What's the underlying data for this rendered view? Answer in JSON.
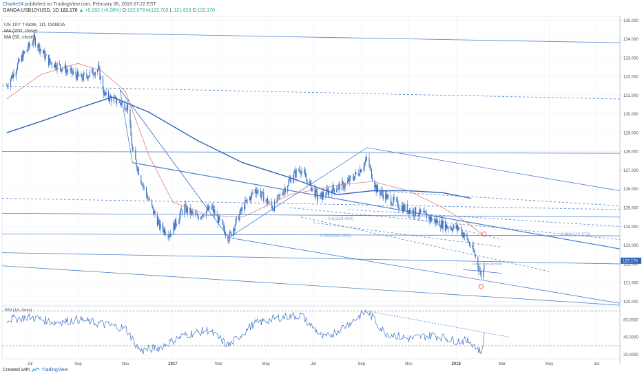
{
  "header": {
    "author": "Charlie24",
    "published": "published on TradingView.com, February 06, 2018 07:22 EST",
    "symbol": "OANDA:USB10YUSD, 1D",
    "last": "122.170",
    "change": "▲ +0.092 (+0.08%)",
    "o_label": "O:",
    "o_value": "122.078",
    "h_label": "H:",
    "h_value": "122.703",
    "l_label": "L:",
    "l_value": "121.623",
    "c_label": "C:",
    "c_value": "122.170"
  },
  "legend": {
    "title": "US 10Y T-Note, 1D, OANDA",
    "ma200": "MA (200, close)",
    "ma50": "MA (50, close)"
  },
  "footer": {
    "created_with": "Created with",
    "brand": "TradingView"
  },
  "colors": {
    "candle": "#3d72c4",
    "line": "#4a80cc",
    "ma200": "#2f64b8",
    "ma50": "#d88080",
    "rsi": "#3d72c4",
    "grid": "#eef1f5"
  },
  "chart_data": [
    {
      "type": "line",
      "title": "US 10Y T-Note, 1D, OANDA",
      "x_ticks": [
        "Jul",
        "Sep",
        "Nov",
        "2017",
        "Mar",
        "May",
        "Jul",
        "Sep",
        "Nov",
        "2018",
        "Mar",
        "May",
        "Jul"
      ],
      "ylim": [
        119.8,
        135.2
      ],
      "y_ticks": [
        "135.000",
        "134.000",
        "133.000",
        "132.000",
        "131.000",
        "130.000",
        "129.000",
        "128.000",
        "127.000",
        "126.000",
        "125.000",
        "124.000",
        "123.000",
        "122.000",
        "121.000",
        "120.000"
      ],
      "last_price_label": "122.170",
      "series": [
        {
          "name": "US 10Y T-Note",
          "x": [
            "2016-06-01",
            "2016-06-20",
            "2016-07-06",
            "2016-07-25",
            "2016-08-15",
            "2016-09-05",
            "2016-09-27",
            "2016-10-05",
            "2016-10-20",
            "2016-11-04",
            "2016-11-10",
            "2016-11-25",
            "2016-12-15",
            "2016-12-28",
            "2017-01-15",
            "2017-02-01",
            "2017-02-20",
            "2017-03-01",
            "2017-03-14",
            "2017-04-01",
            "2017-04-18",
            "2017-05-10",
            "2017-06-01",
            "2017-06-14",
            "2017-07-07",
            "2017-07-25",
            "2017-08-10",
            "2017-08-28",
            "2017-09-08",
            "2017-09-20",
            "2017-10-05",
            "2017-10-25",
            "2017-11-15",
            "2017-12-05",
            "2017-12-20",
            "2018-01-05",
            "2018-01-15",
            "2018-01-25",
            "2018-02-02",
            "2018-02-05",
            "2018-02-06"
          ],
          "values": [
            131.5,
            133.0,
            134.0,
            132.8,
            132.4,
            131.9,
            132.4,
            131.0,
            130.7,
            130.4,
            128.0,
            126.0,
            124.0,
            123.6,
            125.0,
            124.5,
            125.0,
            124.3,
            123.4,
            125.0,
            126.0,
            125.0,
            126.5,
            127.1,
            125.5,
            126.0,
            126.2,
            126.9,
            127.6,
            126.0,
            125.5,
            125.0,
            124.7,
            124.3,
            124.0,
            123.9,
            123.3,
            122.5,
            121.4,
            121.6,
            122.17
          ]
        },
        {
          "name": "MA (200, close)",
          "x": [
            "2016-06-01",
            "2016-07-15",
            "2016-09-01",
            "2016-10-15",
            "2016-12-01",
            "2017-02-01",
            "2017-04-01",
            "2017-06-01",
            "2017-08-01",
            "2017-09-15",
            "2017-11-01",
            "2017-12-15",
            "2018-01-20"
          ],
          "values": [
            129.0,
            129.6,
            130.3,
            130.9,
            130.1,
            128.6,
            127.4,
            126.6,
            125.7,
            125.9,
            125.9,
            125.8,
            125.5
          ]
        },
        {
          "name": "MA (50, close)",
          "x": [
            "2016-06-01",
            "2016-07-15",
            "2016-09-01",
            "2016-10-01",
            "2016-11-01",
            "2016-12-01",
            "2017-01-01",
            "2017-02-15",
            "2017-04-01",
            "2017-06-01",
            "2017-08-01",
            "2017-09-15",
            "2017-11-01",
            "2017-12-15",
            "2018-01-15",
            "2018-02-06"
          ],
          "values": [
            130.8,
            132.1,
            132.7,
            132.3,
            131.2,
            127.8,
            125.3,
            124.6,
            124.5,
            125.7,
            126.2,
            126.4,
            125.9,
            125.0,
            124.2,
            123.5
          ]
        }
      ],
      "annotations": [
        "0.5(124.414)",
        "0.382(123.520)",
        "0.382(123.573)",
        "Longer term pitchfork"
      ]
    },
    {
      "type": "line",
      "title": "RSI (14, close)",
      "ylim": [
        15,
        75
      ],
      "y_ticks": [
        "60.0000",
        "40.0000",
        "20.0000"
      ],
      "series": [
        {
          "name": "RSI",
          "x": [
            "2016-06-01",
            "2016-07-01",
            "2016-08-01",
            "2016-09-01",
            "2016-10-01",
            "2016-11-01",
            "2016-11-20",
            "2016-12-15",
            "2017-01-15",
            "2017-02-15",
            "2017-03-14",
            "2017-04-15",
            "2017-05-15",
            "2017-06-15",
            "2017-07-15",
            "2017-08-15",
            "2017-09-08",
            "2017-10-01",
            "2017-11-01",
            "2017-12-01",
            "2018-01-01",
            "2018-01-20",
            "2018-02-02",
            "2018-02-06"
          ],
          "values": [
            60,
            63,
            57,
            60,
            55,
            50,
            24,
            28,
            42,
            48,
            30,
            55,
            62,
            65,
            38,
            55,
            70,
            45,
            38,
            42,
            36,
            35,
            22,
            41
          ]
        }
      ]
    }
  ]
}
